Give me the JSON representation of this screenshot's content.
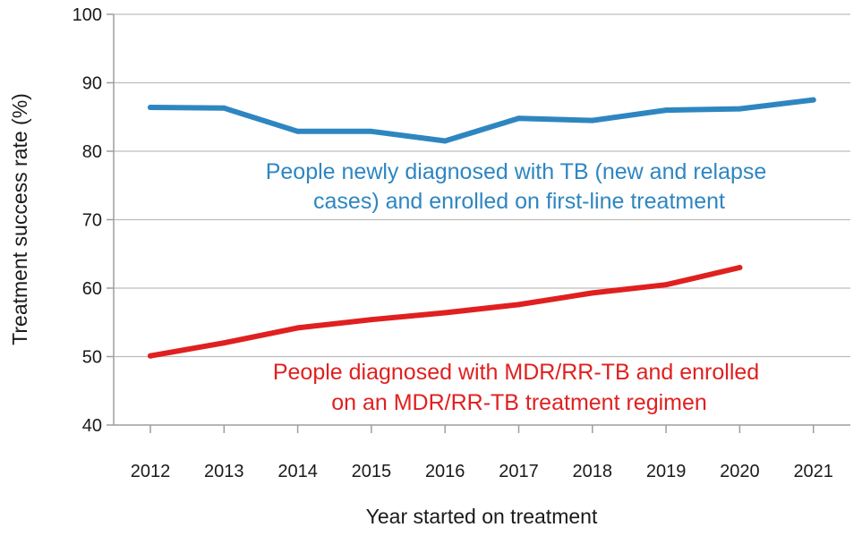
{
  "chart_data": {
    "type": "line",
    "xlabel": "Year started on treatment",
    "ylabel": "Treatment success rate (%)",
    "ylim": [
      40,
      100
    ],
    "yticks": [
      40,
      50,
      60,
      70,
      80,
      90,
      100
    ],
    "x": [
      2012,
      2013,
      2014,
      2015,
      2016,
      2017,
      2018,
      2019,
      2020,
      2021
    ],
    "grid": "horizontal",
    "series": [
      {
        "name": "People newly diagnosed with TB (new and relapse cases) and enrolled on first-line treatment",
        "label_lines": [
          "People newly diagnosed with TB (new and relapse",
          "cases) and enrolled on first-line treatment"
        ],
        "color": "#2e86c1",
        "values": [
          86.4,
          86.3,
          82.9,
          82.9,
          81.5,
          84.8,
          84.5,
          86.0,
          86.2,
          87.5
        ]
      },
      {
        "name": "People diagnosed with MDR/RR-TB and enrolled on an MDR/RR-TB treatment regimen",
        "label_lines": [
          "People diagnosed with MDR/RR-TB and enrolled",
          "on an MDR/RR-TB treatment regimen"
        ],
        "color": "#e02020",
        "values": [
          50.1,
          52.0,
          54.2,
          55.4,
          56.4,
          57.6,
          59.3,
          60.5,
          63.0,
          null
        ]
      }
    ]
  }
}
